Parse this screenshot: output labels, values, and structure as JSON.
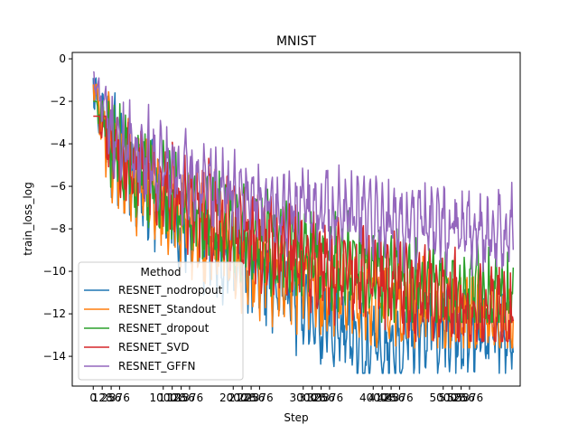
{
  "chart_data": {
    "type": "line",
    "title": "MNIST",
    "xlabel": "Step",
    "ylabel": "train_loss_log",
    "ylim": [
      -15.4,
      0.3
    ],
    "y_ticks": [
      0,
      -2,
      -4,
      -6,
      -8,
      -10,
      -12,
      -14
    ],
    "y_tick_labels": [
      "0",
      "−2",
      "−4",
      "−6",
      "−8",
      "−10",
      "−12",
      "−14"
    ],
    "x_tick_labels": [
      "0",
      "128",
      "256",
      "376",
      "1000",
      "1128",
      "1256",
      "1376",
      "2000",
      "2128",
      "2256",
      "2376",
      "3000",
      "3128",
      "3256",
      "3376",
      "4000",
      "4128",
      "4256",
      "4376",
      "5000",
      "5128",
      "5256",
      "5376"
    ],
    "legend": {
      "title": "Method",
      "position": "lower-left"
    },
    "series": [
      {
        "name": "RESNET_nodropout",
        "color": "#1f77b4",
        "trend": [
          [
            0,
            -1.2
          ],
          [
            0.05,
            -4
          ],
          [
            0.2,
            -7.5
          ],
          [
            0.4,
            -10
          ],
          [
            0.55,
            -12
          ],
          [
            0.65,
            -13.5
          ],
          [
            0.8,
            -12.5
          ],
          [
            1,
            -13
          ]
        ],
        "amp": 2.6,
        "min": -14.8,
        "max": -0.9,
        "seed": 11
      },
      {
        "name": "RESNET_Standout",
        "color": "#ff7f0e",
        "trend": [
          [
            0,
            -1.0
          ],
          [
            0.05,
            -4.2
          ],
          [
            0.2,
            -7.2
          ],
          [
            0.4,
            -9.5
          ],
          [
            0.6,
            -10.8
          ],
          [
            0.8,
            -11.3
          ],
          [
            1,
            -12.3
          ]
        ],
        "amp": 2.6,
        "min": -13.6,
        "max": -1.2,
        "seed": 23
      },
      {
        "name": "RESNET_dropout",
        "color": "#2ca02c",
        "trend": [
          [
            0,
            -1.0
          ],
          [
            0.05,
            -4.0
          ],
          [
            0.2,
            -6.5
          ],
          [
            0.4,
            -8.3
          ],
          [
            0.6,
            -9.5
          ],
          [
            0.8,
            -10.3
          ],
          [
            1,
            -11.0
          ]
        ],
        "amp": 2.5,
        "min": -12.4,
        "max": -2.0,
        "seed": 37
      },
      {
        "name": "RESNET_SVD",
        "color": "#d62728",
        "trend": [
          [
            0,
            -1.0
          ],
          [
            0.05,
            -3.8
          ],
          [
            0.2,
            -6.2
          ],
          [
            0.4,
            -8.3
          ],
          [
            0.6,
            -9.8
          ],
          [
            0.8,
            -10.8
          ],
          [
            1,
            -12.0
          ]
        ],
        "amp": 2.6,
        "min": -13.3,
        "max": -2.7,
        "seed": 53
      },
      {
        "name": "RESNET_GFFN",
        "color": "#9467bd",
        "trend": [
          [
            0,
            -0.6
          ],
          [
            0.05,
            -3.4
          ],
          [
            0.2,
            -5.2
          ],
          [
            0.4,
            -6.5
          ],
          [
            0.6,
            -7.0
          ],
          [
            0.8,
            -7.6
          ],
          [
            1,
            -8.0
          ]
        ],
        "amp": 2.3,
        "min": -10.2,
        "max": -0.6,
        "seed": 71
      }
    ]
  }
}
